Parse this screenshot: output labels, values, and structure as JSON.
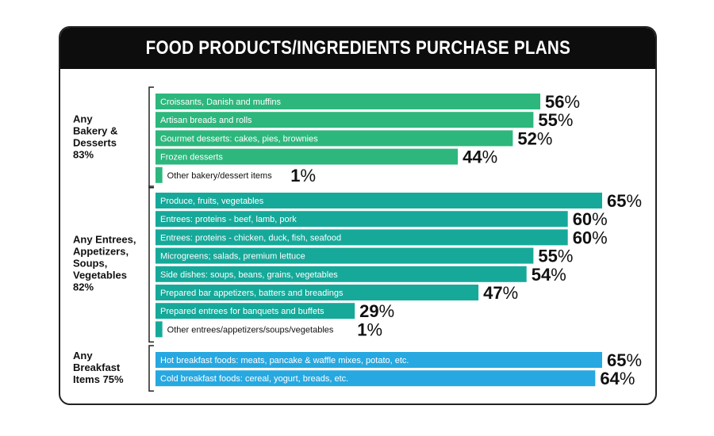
{
  "chart_data": {
    "type": "bar",
    "orientation": "horizontal",
    "title": "FOOD PRODUCTS/INGREDIENTS PURCHASE PLANS",
    "unit": "%",
    "xlim": [
      0,
      65
    ],
    "groups": [
      {
        "label_lines": [
          "Any",
          "Bakery &",
          "Desserts",
          "83%"
        ],
        "color": "#2db77d",
        "items": [
          {
            "label": "Croissants, Danish and muffins",
            "value": 56
          },
          {
            "label": "Artisan breads and rolls",
            "value": 55
          },
          {
            "label": "Gourmet desserts: cakes, pies, brownies",
            "value": 52
          },
          {
            "label": "Frozen desserts",
            "value": 44
          },
          {
            "label": "Other bakery/dessert items",
            "value": 1
          }
        ]
      },
      {
        "label_lines": [
          "Any Entrees,",
          "Appetizers,",
          "Soups,",
          "Vegetables",
          "82%"
        ],
        "color": "#16a99a",
        "items": [
          {
            "label": "Produce, fruits, vegetables",
            "value": 65
          },
          {
            "label": "Entrees: proteins - beef, lamb, pork",
            "value": 60
          },
          {
            "label": "Entrees: proteins - chicken, duck, fish, seafood",
            "value": 60
          },
          {
            "label": "Microgreens; salads, premium lettuce",
            "value": 55
          },
          {
            "label": "Side dishes: soups, beans, grains, vegetables",
            "value": 54
          },
          {
            "label": "Prepared bar appetizers, batters and breadings",
            "value": 47
          },
          {
            "label": "Prepared entrees for banquets and buffets",
            "value": 29
          },
          {
            "label": "Other entrees/appetizers/soups/vegetables",
            "value": 1
          }
        ]
      },
      {
        "label_lines": [
          "Any",
          "Breakfast",
          "Items 75%"
        ],
        "color": "#27a8e0",
        "items": [
          {
            "label": "Hot breakfast foods: meats, pancake & waffle mixes, potato, etc.",
            "value": 65
          },
          {
            "label": "Cold breakfast foods: cereal, yogurt, breads, etc.",
            "value": 64
          }
        ]
      }
    ]
  }
}
